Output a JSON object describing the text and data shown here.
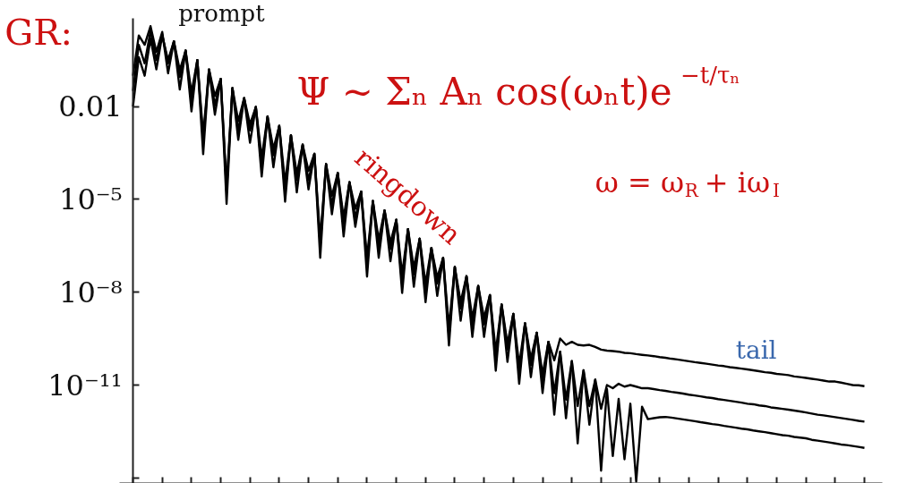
{
  "chart_data": {
    "type": "line",
    "log": "y",
    "line_style": "solid",
    "tick_labels": "y",
    "ylim": [
      6.6e-15,
      7
    ],
    "categories": [
      null,
      null,
      null,
      null,
      null,
      null,
      null,
      null,
      null,
      null,
      null,
      null,
      null,
      null,
      null,
      null,
      null,
      null,
      null,
      null,
      null,
      null,
      null,
      null,
      null,
      null,
      null,
      null,
      null,
      null,
      null,
      null,
      null,
      null,
      null,
      null,
      null,
      null,
      null,
      null,
      null,
      null,
      null,
      null,
      null,
      null,
      null,
      null,
      null,
      null,
      null,
      null,
      null,
      null,
      null,
      null,
      null,
      null,
      null,
      null,
      null,
      null,
      null,
      null,
      null,
      null,
      null,
      null,
      null,
      null,
      null,
      null,
      null,
      null,
      null,
      null,
      null,
      null,
      null,
      null,
      null,
      null,
      null,
      null,
      null,
      null,
      null,
      null,
      null,
      null,
      null,
      null,
      null,
      null,
      null,
      null,
      null,
      null,
      null,
      null,
      null,
      null,
      null,
      null,
      null,
      null,
      null,
      null,
      null,
      null,
      null,
      null,
      null,
      null,
      null,
      null,
      null,
      null,
      null,
      null,
      null,
      null,
      null,
      null,
      null,
      null
    ],
    "yticks": [
      {
        "value": 0.01,
        "label": "0.01"
      },
      {
        "value": 1e-05,
        "label": "10⁻⁵"
      },
      {
        "value": 1e-08,
        "label": "10⁻⁸"
      },
      {
        "value": 1e-11,
        "label": "10⁻¹¹"
      },
      {
        "value": 1e-14,
        "label": null
      }
    ],
    "annotations": [
      "GR:",
      "prompt",
      "Ψ ~ Σₙ Aₙ cos(ωₙt)e$^{−t/τₙ}$",
      "ringdown",
      "ω = ω$_{R}$ + iω$_{I}$",
      "tail"
    ],
    "series": [
      {
        "color": "#000000",
        "values": [
          0.1,
          2.0,
          1.0,
          4.0,
          0.59,
          2.6,
          0.12,
          1.3,
          0.091,
          0.65,
          0.014,
          0.32,
          0.00072,
          0.16,
          0.011,
          0.079,
          1.8e-05,
          0.04,
          0.0017,
          0.019,
          0.0017,
          0.0098,
          0.00011,
          0.0048,
          0.00027,
          0.0024,
          1.7e-05,
          0.0012,
          4.2e-05,
          0.00059,
          4.2e-05,
          0.0003,
          3.3e-07,
          0.00014,
          6.5e-06,
          7.2e-05,
          1.6e-06,
          3.6e-05,
          2.5e-06,
          1.8e-05,
          7.9e-08,
          8.9e-06,
          2.5e-07,
          4.4e-06,
          2.5e-07,
          2.2e-06,
          1.9e-08,
          1.1e-06,
          3.8e-08,
          5.4e-07,
          9.5e-09,
          2.7e-07,
          1.9e-08,
          1.3e-07,
          3.7e-10,
          6.6e-08,
          3e-09,
          3.3e-08,
          7.2e-10,
          1.6e-08,
          9.1e-10,
          8.1e-09,
          5.8e-11,
          4e-09,
          1.4e-10,
          2e-09,
          2.2e-11,
          1e-09,
          4.4e-11,
          4.9e-10,
          1.1e-11,
          2.5e-10,
          6.3e-11,
          3.2e-10,
          2e-10,
          2.5e-10,
          2e-10,
          1.9e-10,
          2e-10,
          1.7e-10,
          1.4e-10,
          1.3e-10,
          1.25e-10,
          1.2e-10,
          1.1e-10,
          1.07e-10,
          1e-10,
          9.5e-11,
          9.1e-11,
          8.6e-11,
          8e-11,
          7.6e-11,
          7.1e-11,
          6.7e-11,
          6.3e-11,
          5.9e-11,
          5.5e-11,
          5.2e-11,
          4.9e-11,
          4.6e-11,
          4.3e-11,
          4.1e-11,
          3.8e-11,
          3.6e-11,
          3.4e-11,
          3.2e-11,
          3e-11,
          2.8e-11,
          2.6e-11,
          2.5e-11,
          2.3e-11,
          2.2e-11,
          2.1e-11,
          1.9e-11,
          1.8e-11,
          1.7e-11,
          1.6e-11,
          1.5e-11,
          1.4e-11,
          1.3e-11,
          1.3e-11,
          1.2e-11,
          1.1e-11,
          1e-11,
          9.8e-12,
          9.2e-12
        ]
      },
      {
        "color": "#000000",
        "values": [
          0.032,
          1.0,
          0.25,
          2.8,
          0.32,
          2.2,
          0.25,
          1.3,
          0.036,
          0.65,
          0.028,
          0.32,
          0.00029,
          0.16,
          0.022,
          0.079,
          7.2e-06,
          0.04,
          0.0034,
          0.019,
          0.00068,
          0.0098,
          0.00022,
          0.0048,
          0.00011,
          0.0024,
          3.4e-05,
          0.0012,
          1.7e-05,
          0.00059,
          8.4e-05,
          0.0003,
          1.3e-07,
          0.00014,
          1.3e-05,
          7.2e-05,
          6.4e-07,
          3.6e-05,
          5e-06,
          1.8e-05,
          3.2e-08,
          8.9e-06,
          5e-07,
          4.4e-06,
          1e-07,
          2.2e-06,
          3.8e-08,
          1.1e-06,
          1.5e-08,
          5.4e-07,
          1.9e-08,
          2.7e-07,
          7.6e-09,
          1.3e-07,
          7.4e-10,
          6.6e-08,
          1.2e-09,
          3.3e-08,
          1.4e-09,
          1.6e-08,
          3.6e-10,
          8.1e-09,
          1.2e-10,
          4e-09,
          5.6e-11,
          2e-09,
          4.4e-11,
          1e-09,
          1.8e-11,
          4.9e-10,
          2.2e-11,
          2.5e-10,
          5.5e-12,
          1.2e-10,
          8.5e-13,
          6e-11,
          2.1e-12,
          3e-11,
          2.1e-12,
          1.5e-11,
          1.7e-12,
          1e-11,
          7.9e-12,
          1.1e-11,
          8.9e-12,
          1e-11,
          8.9e-12,
          7.9e-12,
          7.9e-12,
          7.4e-12,
          6.9e-12,
          6.5e-12,
          6e-12,
          5.7e-12,
          5.3e-12,
          4.9e-12,
          4.6e-12,
          4.3e-12,
          4e-12,
          3.8e-12,
          3.5e-12,
          3.3e-12,
          3.1e-12,
          2.9e-12,
          2.7e-12,
          2.5e-12,
          2.4e-12,
          2.2e-12,
          2.1e-12,
          1.9e-12,
          1.8e-12,
          1.7e-12,
          1.6e-12,
          1.5e-12,
          1.4e-12,
          1.3e-12,
          1.2e-12,
          1.1e-12,
          1.05e-12,
          9.8e-13,
          9.2e-13,
          8.6e-13,
          8e-13,
          7.5e-13,
          7e-13,
          6.6e-13
        ]
      },
      {
        "color": "#000000",
        "values": [
          0.01,
          0.4,
          0.1,
          1.6,
          0.16,
          2.0,
          0.32,
          1.3,
          0.15,
          0.65,
          0.007,
          0.32,
          0.0012,
          0.16,
          0.0055,
          0.079,
          2.9e-05,
          0.04,
          0.00085,
          0.019,
          0.0027,
          0.0098,
          5.5e-05,
          0.0048,
          0.00043,
          0.0024,
          8.5e-06,
          0.0012,
          6.7e-05,
          0.00059,
          2.1e-05,
          0.0003,
          5.3e-07,
          0.00014,
          3.3e-06,
          7.2e-05,
          2.6e-06,
          3.6e-05,
          1.3e-06,
          1.8e-05,
          1.3e-07,
          8.9e-06,
          1.3e-07,
          4.4e-06,
          4e-07,
          2.2e-06,
          9.5e-09,
          1.1e-06,
          6.1e-08,
          5.4e-07,
          4.8e-09,
          2.7e-07,
          3e-08,
          1.3e-07,
          1.9e-10,
          6.6e-08,
          4.8e-09,
          3.3e-08,
          3.6e-10,
          1.6e-08,
          1.5e-09,
          8.1e-09,
          2.9e-11,
          4e-09,
          2.2e-10,
          2e-09,
          1.1e-11,
          1e-09,
          7e-11,
          4.9e-10,
          5.5e-12,
          2.5e-10,
          1.1e-12,
          1.2e-10,
          3.4e-12,
          6e-11,
          1.3e-13,
          3e-11,
          5.2e-13,
          1.5e-11,
          1.7e-14,
          7.4e-12,
          5.1e-14,
          3.6e-12,
          4e-14,
          2.5e-12,
          7.6e-15,
          2e-12,
          7.9e-13,
          8.5e-13,
          9.1e-13,
          9.3e-13,
          8.9e-13,
          8.3e-13,
          7.8e-13,
          7.3e-13,
          6.8e-13,
          6.3e-13,
          5.9e-13,
          5.5e-13,
          5.2e-13,
          4.8e-13,
          4.5e-13,
          4.2e-13,
          3.9e-13,
          3.7e-13,
          3.4e-13,
          3.2e-13,
          3e-13,
          2.8e-13,
          2.6e-13,
          2.4e-13,
          2.3e-13,
          2.1e-13,
          2e-13,
          1.9e-13,
          1.7e-13,
          1.6e-13,
          1.5e-13,
          1.4e-13,
          1.3e-13,
          1.2e-13,
          1.15e-13,
          1.07e-13,
          1e-13,
          9.3e-14
        ]
      }
    ]
  }
}
